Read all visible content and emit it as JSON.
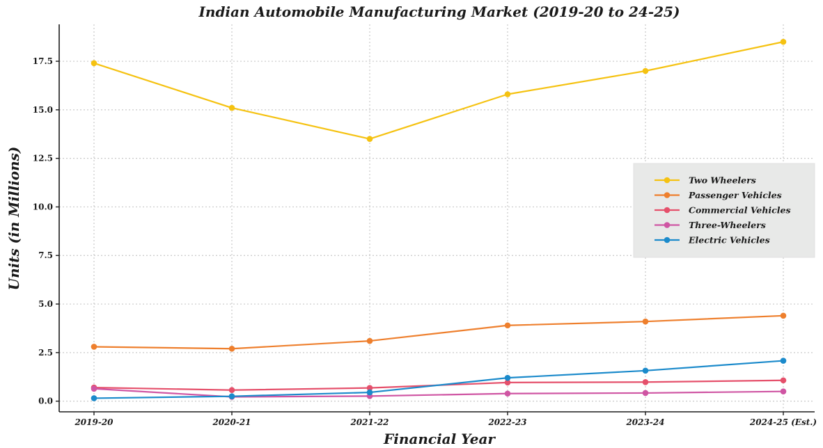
{
  "chart_data": {
    "type": "line",
    "title": "Indian Automobile Manufacturing Market (2019-20 to 24-25)",
    "xlabel": "Financial Year",
    "ylabel": "Units (in Millions)",
    "categories": [
      "2019-20",
      "2020-21",
      "2021-22",
      "2022-23",
      "2023-24",
      "2024-25 (Est.)"
    ],
    "ylim": [
      -0.55,
      19.4
    ],
    "yticks": [
      0.0,
      2.5,
      5.0,
      7.5,
      10.0,
      12.5,
      15.0,
      17.5
    ],
    "ytick_labels": [
      "0.0",
      "2.5",
      "5.0",
      "7.5",
      "10.0",
      "12.5",
      "15.0",
      "17.5"
    ],
    "grid": true,
    "legend_position": "right",
    "series": [
      {
        "name": "Two Wheelers",
        "color": "#F5C211",
        "values": [
          17.4,
          15.1,
          13.5,
          15.8,
          17.0,
          18.5
        ]
      },
      {
        "name": "Passenger Vehicles",
        "color": "#EE7F2D",
        "values": [
          2.8,
          2.7,
          3.1,
          3.9,
          4.1,
          4.4
        ]
      },
      {
        "name": "Commercial Vehicles",
        "color": "#E5506B",
        "values": [
          0.7,
          0.57,
          0.68,
          0.96,
          0.98,
          1.07
        ]
      },
      {
        "name": "Three-Wheelers",
        "color": "#CF55A3",
        "values": [
          0.64,
          0.22,
          0.26,
          0.39,
          0.42,
          0.5
        ]
      },
      {
        "name": "Electric Vehicles",
        "color": "#1B8ACB",
        "values": [
          0.15,
          0.25,
          0.45,
          1.2,
          1.57,
          2.08
        ]
      }
    ]
  }
}
